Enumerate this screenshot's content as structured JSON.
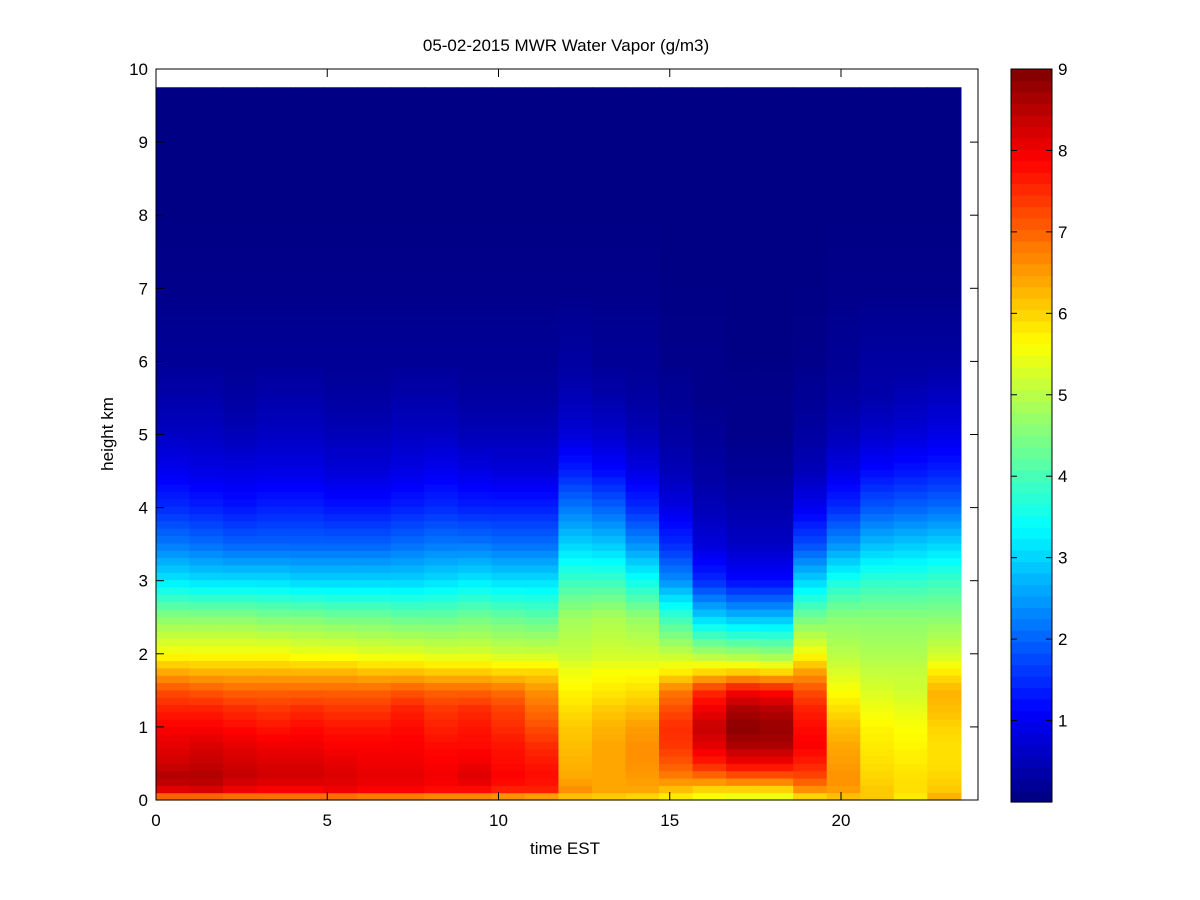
{
  "chart_data": {
    "type": "heatmap",
    "title": "05-02-2015 MWR Water Vapor (g/m3)",
    "xlabel": "time EST",
    "ylabel": "height km",
    "xlim": [
      0,
      24
    ],
    "ylim": [
      0,
      10
    ],
    "xticks": [
      "0",
      "5",
      "10",
      "15",
      "20"
    ],
    "yticks": [
      "0",
      "1",
      "2",
      "3",
      "4",
      "5",
      "6",
      "7",
      "8",
      "9",
      "10"
    ],
    "colorbar": {
      "colormap": "jet",
      "range": [
        0,
        9
      ],
      "ticks": [
        "1",
        "2",
        "3",
        "4",
        "5",
        "6",
        "7",
        "8",
        "9"
      ]
    },
    "grid": false,
    "x_coverage": [
      0,
      23.5
    ],
    "y_coverage": [
      0,
      9.75
    ],
    "time_columns": [
      0.5,
      1.5,
      2.5,
      3.5,
      4.5,
      5.5,
      6.5,
      7.5,
      8.5,
      9.5,
      10.5,
      11.5,
      12.5,
      13.5,
      14.5,
      15.5,
      16.5,
      17.5,
      18.5,
      19.5,
      20.5,
      21.5,
      22.5,
      23.5
    ],
    "height_levels_km": [
      0.05,
      0.15,
      0.3,
      0.5,
      0.75,
      1.0,
      1.25,
      1.5,
      1.75,
      2.0,
      2.5,
      3.0,
      3.5,
      4.0,
      4.5,
      5.0,
      5.5,
      6.0,
      7.0,
      8.0,
      9.0
    ],
    "profiles": [
      [
        7.0,
        8.1,
        8.6,
        8.3,
        8.1,
        7.9,
        7.6,
        7.2,
        6.4,
        5.6,
        4.6,
        3.2,
        2.2,
        1.5,
        1.0,
        0.6,
        0.4,
        0.2,
        0.1,
        0.05,
        0.05
      ],
      [
        7.0,
        8.2,
        8.6,
        8.4,
        8.2,
        7.9,
        7.6,
        7.1,
        6.3,
        5.6,
        4.6,
        3.1,
        2.1,
        1.4,
        0.9,
        0.6,
        0.4,
        0.2,
        0.1,
        0.05,
        0.05
      ],
      [
        6.9,
        8.0,
        8.4,
        8.3,
        8.1,
        7.8,
        7.5,
        7.0,
        6.3,
        5.6,
        4.6,
        3.1,
        2.0,
        1.3,
        0.9,
        0.5,
        0.3,
        0.2,
        0.1,
        0.05,
        0.05
      ],
      [
        6.9,
        7.9,
        8.3,
        8.2,
        8.0,
        7.7,
        7.4,
        7.0,
        6.3,
        5.6,
        4.5,
        3.1,
        2.0,
        1.4,
        0.9,
        0.6,
        0.4,
        0.2,
        0.1,
        0.05,
        0.05
      ],
      [
        6.9,
        7.9,
        8.3,
        8.2,
        8.0,
        7.8,
        7.5,
        7.0,
        6.3,
        5.5,
        4.5,
        3.0,
        2.0,
        1.4,
        0.9,
        0.6,
        0.4,
        0.2,
        0.1,
        0.05,
        0.05
      ],
      [
        6.9,
        8.0,
        8.2,
        8.1,
        7.9,
        7.7,
        7.4,
        7.0,
        6.3,
        5.5,
        4.4,
        3.0,
        2.0,
        1.3,
        0.8,
        0.5,
        0.3,
        0.2,
        0.1,
        0.05,
        0.05
      ],
      [
        6.8,
        7.9,
        8.1,
        8.0,
        7.9,
        7.7,
        7.4,
        7.0,
        6.2,
        5.4,
        4.4,
        3.0,
        2.0,
        1.3,
        0.8,
        0.5,
        0.3,
        0.2,
        0.1,
        0.05,
        0.05
      ],
      [
        6.8,
        7.9,
        8.1,
        8.0,
        7.9,
        7.8,
        7.6,
        7.1,
        6.2,
        5.4,
        4.3,
        3.0,
        2.1,
        1.4,
        0.9,
        0.6,
        0.4,
        0.2,
        0.1,
        0.05,
        0.05
      ],
      [
        6.7,
        7.8,
        8.0,
        7.9,
        7.8,
        7.6,
        7.4,
        7.0,
        6.1,
        5.3,
        4.3,
        3.1,
        2.2,
        1.5,
        1.0,
        0.6,
        0.4,
        0.2,
        0.1,
        0.05,
        0.05
      ],
      [
        6.7,
        7.8,
        8.2,
        8.0,
        7.8,
        7.7,
        7.5,
        7.0,
        6.1,
        5.3,
        4.4,
        3.2,
        2.2,
        1.4,
        0.9,
        0.5,
        0.3,
        0.2,
        0.1,
        0.05,
        0.05
      ],
      [
        6.6,
        7.6,
        7.9,
        7.8,
        7.7,
        7.5,
        7.3,
        6.9,
        6.0,
        5.2,
        4.3,
        3.1,
        2.1,
        1.4,
        0.8,
        0.5,
        0.3,
        0.2,
        0.1,
        0.05,
        0.05
      ],
      [
        6.5,
        7.6,
        7.8,
        7.7,
        7.5,
        7.2,
        6.9,
        6.6,
        6.0,
        5.2,
        4.2,
        3.1,
        2.1,
        1.4,
        0.8,
        0.5,
        0.3,
        0.2,
        0.1,
        0.05,
        0.05
      ],
      [
        6.2,
        6.6,
        6.4,
        6.3,
        6.2,
        6.1,
        5.9,
        5.7,
        5.5,
        5.1,
        4.8,
        3.9,
        3.0,
        2.2,
        1.4,
        0.8,
        0.5,
        0.3,
        0.1,
        0.05,
        0.05
      ],
      [
        6.1,
        6.4,
        6.4,
        6.4,
        6.4,
        6.3,
        6.1,
        5.8,
        5.6,
        5.2,
        4.9,
        3.9,
        2.9,
        2.0,
        1.2,
        0.7,
        0.4,
        0.2,
        0.1,
        0.05,
        0.05
      ],
      [
        6.0,
        6.4,
        6.5,
        6.6,
        6.6,
        6.5,
        6.2,
        5.9,
        5.6,
        5.2,
        4.7,
        3.5,
        2.4,
        1.5,
        0.9,
        0.5,
        0.3,
        0.2,
        0.1,
        0.05,
        0.05
      ],
      [
        5.8,
        6.2,
        6.7,
        7.1,
        7.4,
        7.5,
        7.2,
        6.8,
        5.8,
        5.1,
        3.9,
        2.4,
        1.5,
        0.9,
        0.5,
        0.3,
        0.2,
        0.1,
        0.05,
        0.05,
        0.05
      ],
      [
        5.6,
        6.0,
        6.8,
        7.6,
        8.1,
        8.4,
        8.0,
        7.5,
        6.0,
        4.9,
        3.0,
        1.5,
        0.8,
        0.5,
        0.3,
        0.2,
        0.1,
        0.1,
        0.05,
        0.05,
        0.05
      ],
      [
        5.5,
        6.0,
        7.0,
        7.9,
        8.6,
        8.9,
        8.6,
        7.9,
        6.1,
        4.8,
        2.8,
        1.2,
        0.6,
        0.4,
        0.2,
        0.1,
        0.1,
        0.05,
        0.05,
        0.05,
        0.05
      ],
      [
        5.5,
        6.0,
        7.0,
        7.9,
        8.6,
        8.8,
        8.5,
        7.8,
        6.0,
        4.7,
        2.8,
        1.2,
        0.6,
        0.4,
        0.2,
        0.1,
        0.1,
        0.05,
        0.05,
        0.05,
        0.05
      ],
      [
        6.0,
        6.6,
        7.2,
        7.6,
        7.9,
        7.8,
        7.6,
        7.2,
        6.5,
        5.6,
        4.4,
        3.0,
        1.8,
        1.0,
        0.5,
        0.3,
        0.2,
        0.1,
        0.05,
        0.05,
        0.05
      ],
      [
        6.2,
        6.5,
        6.6,
        6.5,
        6.4,
        6.2,
        5.9,
        5.6,
        5.3,
        5.0,
        4.6,
        3.6,
        2.4,
        1.5,
        0.9,
        0.5,
        0.3,
        0.2,
        0.1,
        0.05,
        0.05
      ],
      [
        6.1,
        6.1,
        6.0,
        5.9,
        5.8,
        5.7,
        5.5,
        5.3,
        5.1,
        4.9,
        4.6,
        3.8,
        2.8,
        1.9,
        1.2,
        0.7,
        0.4,
        0.3,
        0.1,
        0.05,
        0.05
      ],
      [
        5.8,
        5.9,
        5.9,
        5.8,
        5.7,
        5.6,
        5.4,
        5.2,
        5.1,
        4.9,
        4.6,
        3.8,
        2.9,
        2.0,
        1.3,
        0.8,
        0.5,
        0.3,
        0.1,
        0.05,
        0.05
      ],
      [
        6.3,
        6.1,
        6.0,
        5.9,
        5.9,
        6.0,
        6.2,
        6.3,
        5.8,
        5.2,
        4.6,
        3.9,
        3.0,
        2.1,
        1.4,
        0.9,
        0.6,
        0.3,
        0.1,
        0.05,
        0.05
      ]
    ]
  }
}
